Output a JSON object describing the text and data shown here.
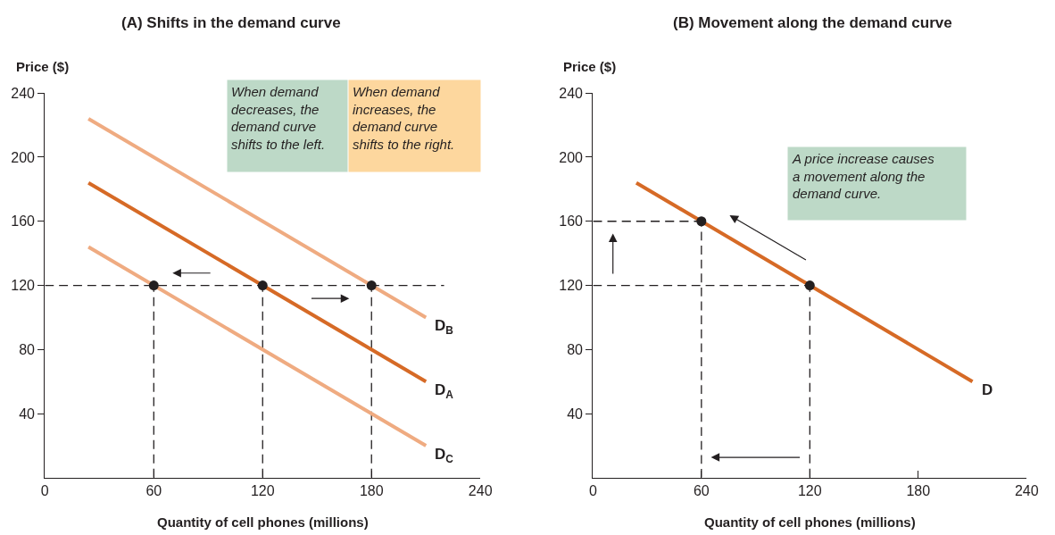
{
  "chart_data": [
    {
      "type": "line",
      "title": "(A) Shifts in the demand curve",
      "xlabel": "Quantity of cell phones (millions)",
      "ylabel": "Price ($)",
      "xlim": [
        0,
        240
      ],
      "ylim": [
        0,
        240
      ],
      "xticks": [
        0,
        60,
        120,
        180,
        240
      ],
      "yticks": [
        40,
        80,
        120,
        160,
        200,
        240
      ],
      "series": [
        {
          "x": [
            0,
            220
          ],
          "values": [
            120,
            120
          ],
          "color": "#231f20",
          "line_style": "dashed",
          "marker": "none"
        },
        {
          "x": [
            60,
            60
          ],
          "values": [
            0,
            120
          ],
          "color": "#231f20",
          "line_style": "dashed",
          "marker": "none"
        },
        {
          "x": [
            120,
            120
          ],
          "values": [
            0,
            120
          ],
          "color": "#231f20",
          "line_style": "dashed",
          "marker": "none"
        },
        {
          "x": [
            180,
            180
          ],
          "values": [
            0,
            120
          ],
          "color": "#231f20",
          "line_style": "dashed",
          "marker": "none"
        },
        {
          "name": "D$_{B}$",
          "x": [
            24,
            210
          ],
          "values": [
            224,
            100
          ],
          "color": "#efab81",
          "line_style": "solid",
          "marker": "none"
        },
        {
          "name": "D$_{A}$",
          "x": [
            24,
            210
          ],
          "values": [
            184,
            60
          ],
          "color": "#d66a26",
          "line_style": "solid",
          "marker": "none"
        },
        {
          "name": "D$_{C}$",
          "x": [
            24,
            210
          ],
          "values": [
            144,
            20
          ],
          "color": "#efab81",
          "line_style": "solid",
          "marker": "none"
        },
        {
          "type": "scatter",
          "x": [
            60,
            120,
            180
          ],
          "values": [
            120,
            120,
            120
          ],
          "color": "#231f20",
          "marker": "circle"
        }
      ],
      "annotations": [
        "When demand\ndecreases, the\ndemand curve\nshifts to the left.",
        "When demand\nincreases, the\ndemand curve\nshifts to the right."
      ]
    },
    {
      "type": "line",
      "title": "(B) Movement along the demand curve",
      "xlabel": "Quantity of cell phones (millions)",
      "ylabel": "Price ($)",
      "xlim": [
        0,
        240
      ],
      "ylim": [
        0,
        240
      ],
      "xticks": [
        0,
        60,
        120,
        180,
        240
      ],
      "yticks": [
        40,
        80,
        120,
        160,
        200,
        240
      ],
      "series": [
        {
          "x": [
            0,
            60
          ],
          "values": [
            160,
            160
          ],
          "color": "#231f20",
          "line_style": "dashed",
          "marker": "none"
        },
        {
          "x": [
            0,
            120
          ],
          "values": [
            120,
            120
          ],
          "color": "#231f20",
          "line_style": "dashed",
          "marker": "none"
        },
        {
          "x": [
            60,
            60
          ],
          "values": [
            0,
            160
          ],
          "color": "#231f20",
          "line_style": "dashed",
          "marker": "none"
        },
        {
          "x": [
            120,
            120
          ],
          "values": [
            0,
            120
          ],
          "color": "#231f20",
          "line_style": "dashed",
          "marker": "none"
        },
        {
          "name": "D",
          "x": [
            24,
            210
          ],
          "values": [
            184,
            60
          ],
          "color": "#d66a26",
          "line_style": "solid",
          "marker": "none"
        },
        {
          "type": "scatter",
          "x": [
            60,
            120
          ],
          "values": [
            160,
            120
          ],
          "color": "#231f20",
          "marker": "circle"
        }
      ],
      "annotations": [
        "A price increase causes\na movement along the\ndemand curve."
      ]
    }
  ]
}
